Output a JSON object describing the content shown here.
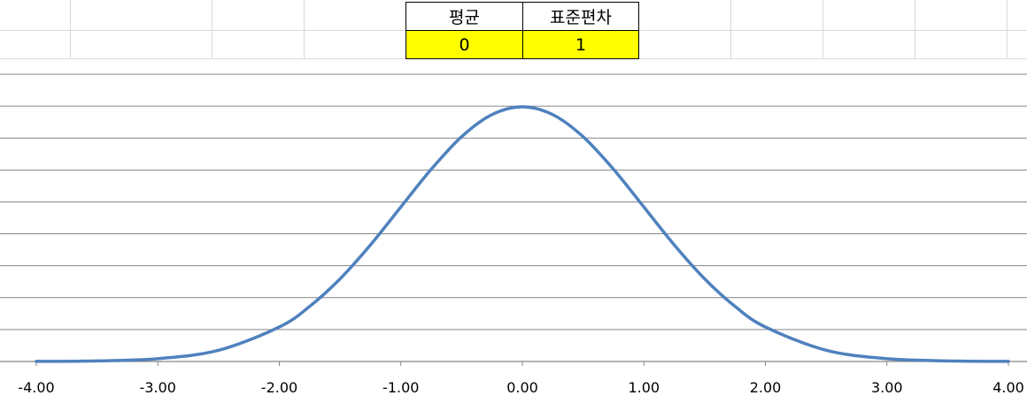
{
  "table": {
    "headers": [
      "평균",
      "표준편차"
    ],
    "values": [
      "0",
      "1"
    ]
  },
  "colors": {
    "curve": "#4f81bd",
    "gridline": "#868686",
    "highlight": "#ffff00"
  },
  "chart_data": {
    "type": "line",
    "title": "",
    "xlabel": "",
    "ylabel": "",
    "xlim": [
      -4,
      4
    ],
    "ylim": [
      0,
      0.45
    ],
    "y_gridline_step": 0.05,
    "grid": true,
    "legend": "none",
    "x_tick_labels": [
      "-4.00",
      "-3.00",
      "-2.00",
      "-1.00",
      "0.00",
      "1.00",
      "2.00",
      "3.00",
      "4.00"
    ],
    "series": [
      {
        "x": [
          -4.0,
          -3.5,
          -3.0,
          -2.5,
          -2.0,
          -1.75,
          -1.5,
          -1.25,
          -1.0,
          -0.75,
          -0.5,
          -0.25,
          0.0,
          0.25,
          0.5,
          0.75,
          1.0,
          1.25,
          1.5,
          1.75,
          2.0,
          2.5,
          3.0,
          3.5,
          4.0
        ],
        "y": [
          0.0001,
          0.0009,
          0.0044,
          0.0175,
          0.054,
          0.0863,
          0.1295,
          0.1826,
          0.242,
          0.3011,
          0.3521,
          0.3867,
          0.3989,
          0.3867,
          0.3521,
          0.3011,
          0.242,
          0.1826,
          0.1295,
          0.0863,
          0.054,
          0.0175,
          0.0044,
          0.0009,
          0.0001
        ]
      }
    ]
  }
}
